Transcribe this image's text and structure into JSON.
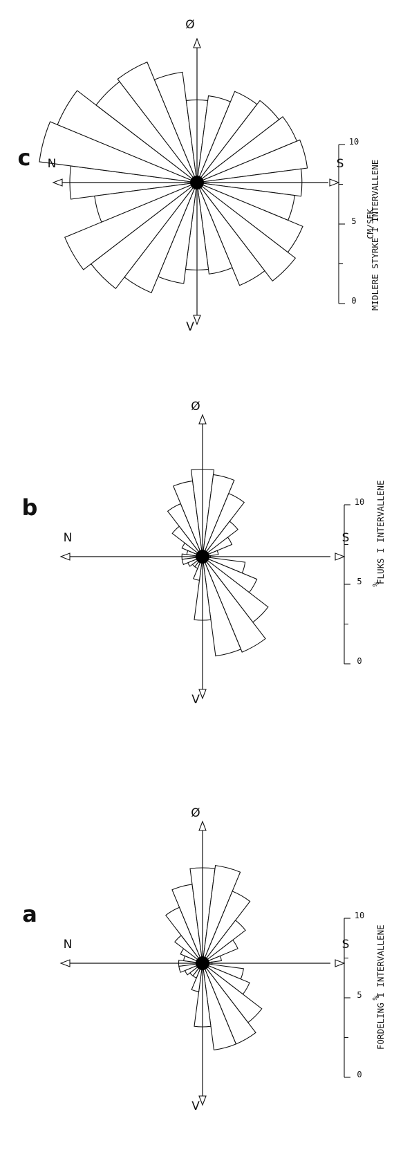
{
  "chart_data": [
    {
      "type": "rose",
      "panel_label": "a",
      "caption": "FORDELING I INTERVALLENE",
      "directions": {
        "north": "N",
        "south": "S",
        "east": "Ø",
        "west": "V"
      },
      "sectors": 24,
      "sector_width_deg": 15,
      "values": [
        1.5,
        1.2,
        1.5,
        2.2,
        3.8,
        5.0,
        6.0,
        6.2,
        4.9,
        3.4,
        2.4,
        1.2,
        0.6,
        2.6,
        3.2,
        4.7,
        5.5,
        5.5,
        4.0,
        1.8,
        1.0,
        1.0,
        1.2,
        1.5
      ],
      "scale": {
        "ticks": [
          "0",
          "5",
          "10"
        ],
        "range": [
          0,
          10
        ],
        "unit": "%"
      }
    },
    {
      "type": "rose",
      "panel_label": "b",
      "caption": "FLUKS I INTERVALLENE",
      "directions": {
        "north": "N",
        "south": "S",
        "east": "Ø",
        "west": "V"
      },
      "sectors": 24,
      "sector_width_deg": 15,
      "values": [
        1.3,
        1.0,
        1.4,
        2.4,
        3.6,
        4.8,
        5.5,
        5.2,
        4.3,
        2.8,
        2.0,
        1.0,
        0.5,
        2.7,
        3.7,
        5.2,
        6.5,
        6.3,
        4.0,
        1.5,
        0.8,
        0.8,
        1.0,
        1.3
      ],
      "scale": {
        "ticks": [
          "0",
          "5",
          "10"
        ],
        "range": [
          0,
          10
        ],
        "unit": "%"
      }
    },
    {
      "type": "rose",
      "panel_label": "c",
      "caption": "MIDLERE STYRKE I INTERVALLENE",
      "directions": {
        "north": "N",
        "south": "S",
        "east": "Ø",
        "west": "V"
      },
      "sectors": 24,
      "sector_width_deg": 15,
      "values": [
        8.0,
        10.0,
        9.5,
        8.0,
        8.2,
        7.0,
        5.2,
        5.5,
        6.2,
        6.5,
        6.8,
        7.0,
        6.6,
        6.2,
        7.2,
        7.8,
        7.0,
        5.8,
        5.5,
        6.4,
        7.5,
        8.4,
        9.0,
        6.5
      ],
      "scale": {
        "ticks": [
          "0",
          "5",
          "10"
        ],
        "range": [
          0,
          10
        ],
        "unit": "CM/SEK"
      }
    }
  ]
}
